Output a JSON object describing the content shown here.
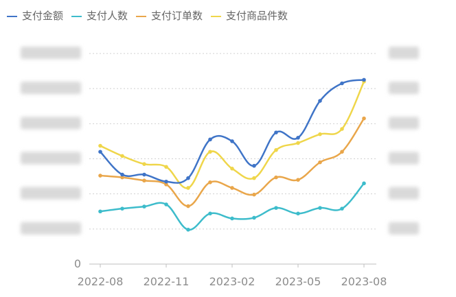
{
  "chart_data": {
    "type": "line",
    "title": "",
    "xlabel": "",
    "ylabel": "",
    "x_tick_labels": [
      "2022-08",
      "2022-11",
      "2023-02",
      "2023-05",
      "2023-08"
    ],
    "y_tick_labels_visible": [
      "0"
    ],
    "ylim": [
      0,
      6
    ],
    "grid": "horizontal-dotted",
    "legend_position": "top-left",
    "x": [
      "2022-08",
      "2022-09",
      "2022-10",
      "2022-11",
      "2022-12",
      "2023-01",
      "2023-02",
      "2023-03",
      "2023-04",
      "2023-05",
      "2023-06",
      "2023-07",
      "2023-08"
    ],
    "series": [
      {
        "name": "支付金额",
        "color": "#3f74c7",
        "values": [
          3.2,
          2.55,
          2.55,
          2.35,
          2.45,
          3.55,
          3.5,
          2.8,
          3.75,
          3.6,
          4.65,
          5.15,
          5.25
        ]
      },
      {
        "name": "支付人数",
        "color": "#3dbccb",
        "values": [
          1.5,
          1.58,
          1.64,
          1.7,
          0.98,
          1.44,
          1.3,
          1.32,
          1.6,
          1.44,
          1.6,
          1.58,
          2.3
        ]
      },
      {
        "name": "支付订单数",
        "color": "#e9a64a",
        "values": [
          2.52,
          2.47,
          2.38,
          2.27,
          1.65,
          2.33,
          2.17,
          1.98,
          2.47,
          2.4,
          2.9,
          3.2,
          4.15
        ]
      },
      {
        "name": "支付商品件数",
        "color": "#efd64a",
        "values": [
          3.37,
          3.08,
          2.85,
          2.77,
          2.17,
          3.2,
          2.72,
          2.45,
          3.25,
          3.45,
          3.7,
          3.85,
          5.2
        ]
      }
    ]
  }
}
